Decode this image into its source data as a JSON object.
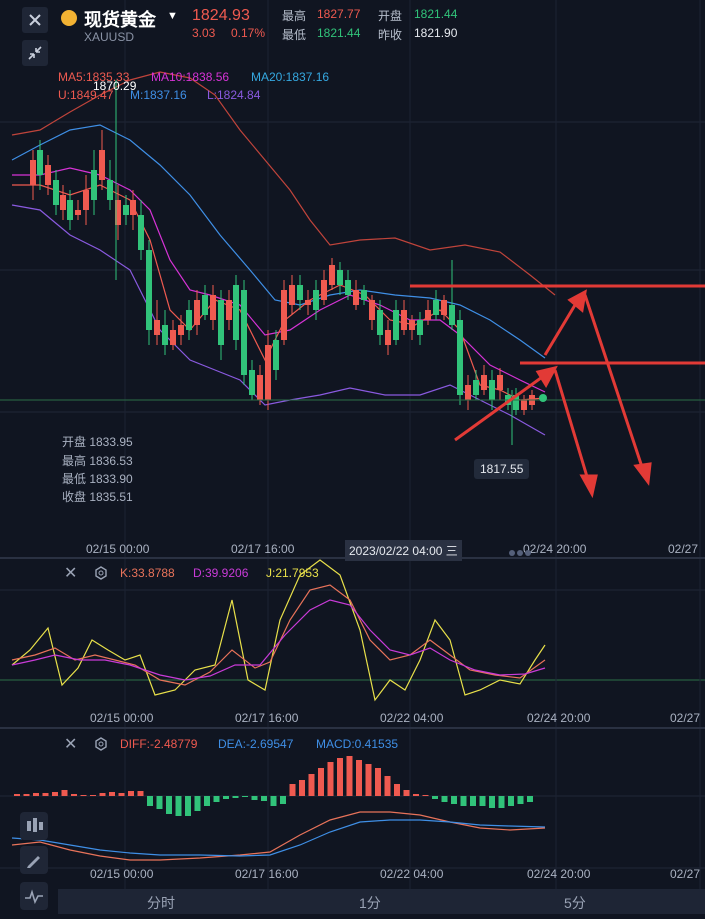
{
  "header": {
    "title": "现货黄金",
    "code": "XAUUSD",
    "price": "1824.93",
    "change": "3.03",
    "change_pct": "0.17%",
    "high_label": "最高",
    "high_value": "1827.77",
    "open_label": "开盘",
    "open_value": "1821.44",
    "low_label": "最低",
    "low_value": "1821.44",
    "prev_close_label": "昨收",
    "prev_close_value": "1821.90"
  },
  "main_indicators": {
    "ma5": "MA5:1835.33",
    "ma10": "MA10:1838.56",
    "ma20": "MA20:1837.16",
    "upper": "U:1849.47",
    "mid": "M:1837.16",
    "lower": "L:1824.84"
  },
  "chart_labels": {
    "max_label": "1870.29",
    "min_label": "1817.55",
    "crosshair_time": "2023/02/22 04:00 三"
  },
  "ohlc_panel": {
    "open": "开盘 1833.95",
    "high": "最高 1836.53",
    "low": "最低 1833.90",
    "close": "收盘 1835.51"
  },
  "time_axis": [
    "02/15 00:00",
    "02/17 16:00",
    "02/22 04:00",
    "02/24 20:00",
    "02/27"
  ],
  "kdj": {
    "k": "K:33.8788",
    "d": "D:39.9206",
    "j": "J:21.7953"
  },
  "macd": {
    "diff": "DIFF:-2.48779",
    "dea": "DEA:-2.69547",
    "macd": "MACD:0.41535"
  },
  "tabs": [
    "分时",
    "1分",
    "5分"
  ],
  "colors": {
    "up": "#ef5a50",
    "down": "#31c37a",
    "ma5": "#ef5a50",
    "ma10": "#d633d6",
    "ma20": "#35a8e0",
    "boll_mid": "#3f8fe6",
    "boll_lower": "#8a5ae0",
    "kdj_k": "#e8735a",
    "kdj_d": "#c93bd8",
    "kdj_j": "#e8e04a",
    "dea": "#3f8fe6"
  },
  "chart_data": {
    "type": "candlestick",
    "series": [
      {
        "name": "MA5"
      },
      {
        "name": "MA10"
      },
      {
        "name": "MA20"
      }
    ]
  },
  "icons": [
    "close-icon",
    "shrink-icon",
    "gold-coin-icon",
    "gear-icon",
    "candles-icon",
    "pen-icon",
    "indicator-icon"
  ]
}
